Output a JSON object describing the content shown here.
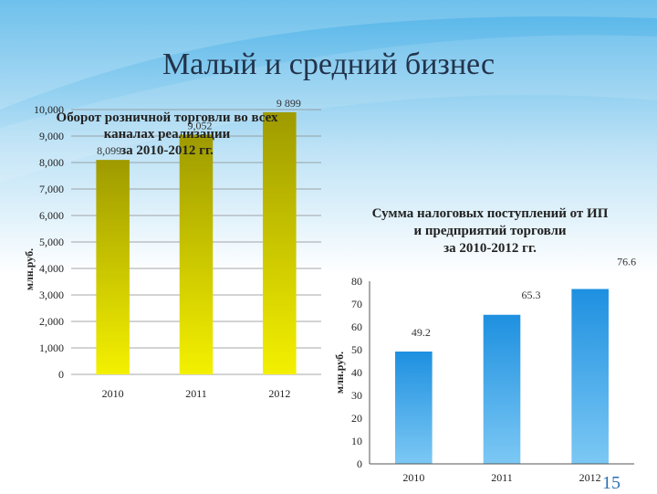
{
  "slide": {
    "title": "Малый и средний бизнес",
    "page_number": "15"
  },
  "chart_data": [
    {
      "type": "bar",
      "title": "Оборот розничной торговли во всех каналах реализации за 2010-2012 гг.",
      "title_lines": [
        "Оборот розничной торговли во всех",
        "каналах реализации",
        "за 2010-2012 гг."
      ],
      "categories": [
        "2010",
        "2011",
        "2012"
      ],
      "values": [
        8099,
        9052,
        9899
      ],
      "value_labels": [
        "8,099",
        "9,052",
        "9 899"
      ],
      "ylabel": "млн.руб.",
      "ylim": [
        0,
        10000
      ],
      "yticks": [
        "0",
        "1,000",
        "2,000",
        "3,000",
        "4,000",
        "5,000",
        "6,000",
        "7,000",
        "8,000",
        "9,000",
        "10,000"
      ],
      "ytick_values": [
        0,
        1000,
        2000,
        3000,
        4000,
        5000,
        6000,
        7000,
        8000,
        9000,
        10000
      ],
      "grid": true,
      "bar_color_top": "#9e9a00",
      "bar_color_bottom": "#f4f000"
    },
    {
      "type": "bar",
      "title": "Сумма налоговых поступлений от ИП и предприятий торговли за 2010-2012 гг.",
      "title_lines": [
        "Сумма налоговых поступлений от ИП",
        "и предприятий торговли",
        "за 2010-2012 гг."
      ],
      "categories": [
        "2010",
        "2011",
        "2012"
      ],
      "values": [
        49.2,
        65.3,
        76.6
      ],
      "value_labels": [
        "49.2",
        "65.3",
        "76.6"
      ],
      "ylabel": "млн.руб.",
      "ylim": [
        0,
        80
      ],
      "yticks": [
        "0",
        "10",
        "20",
        "30",
        "40",
        "50",
        "60",
        "70",
        "80"
      ],
      "ytick_values": [
        0,
        10,
        20,
        30,
        40,
        50,
        60,
        70,
        80
      ],
      "grid": false,
      "bar_color_top": "#1e90e0",
      "bar_color_bottom": "#7cc8f4"
    }
  ]
}
